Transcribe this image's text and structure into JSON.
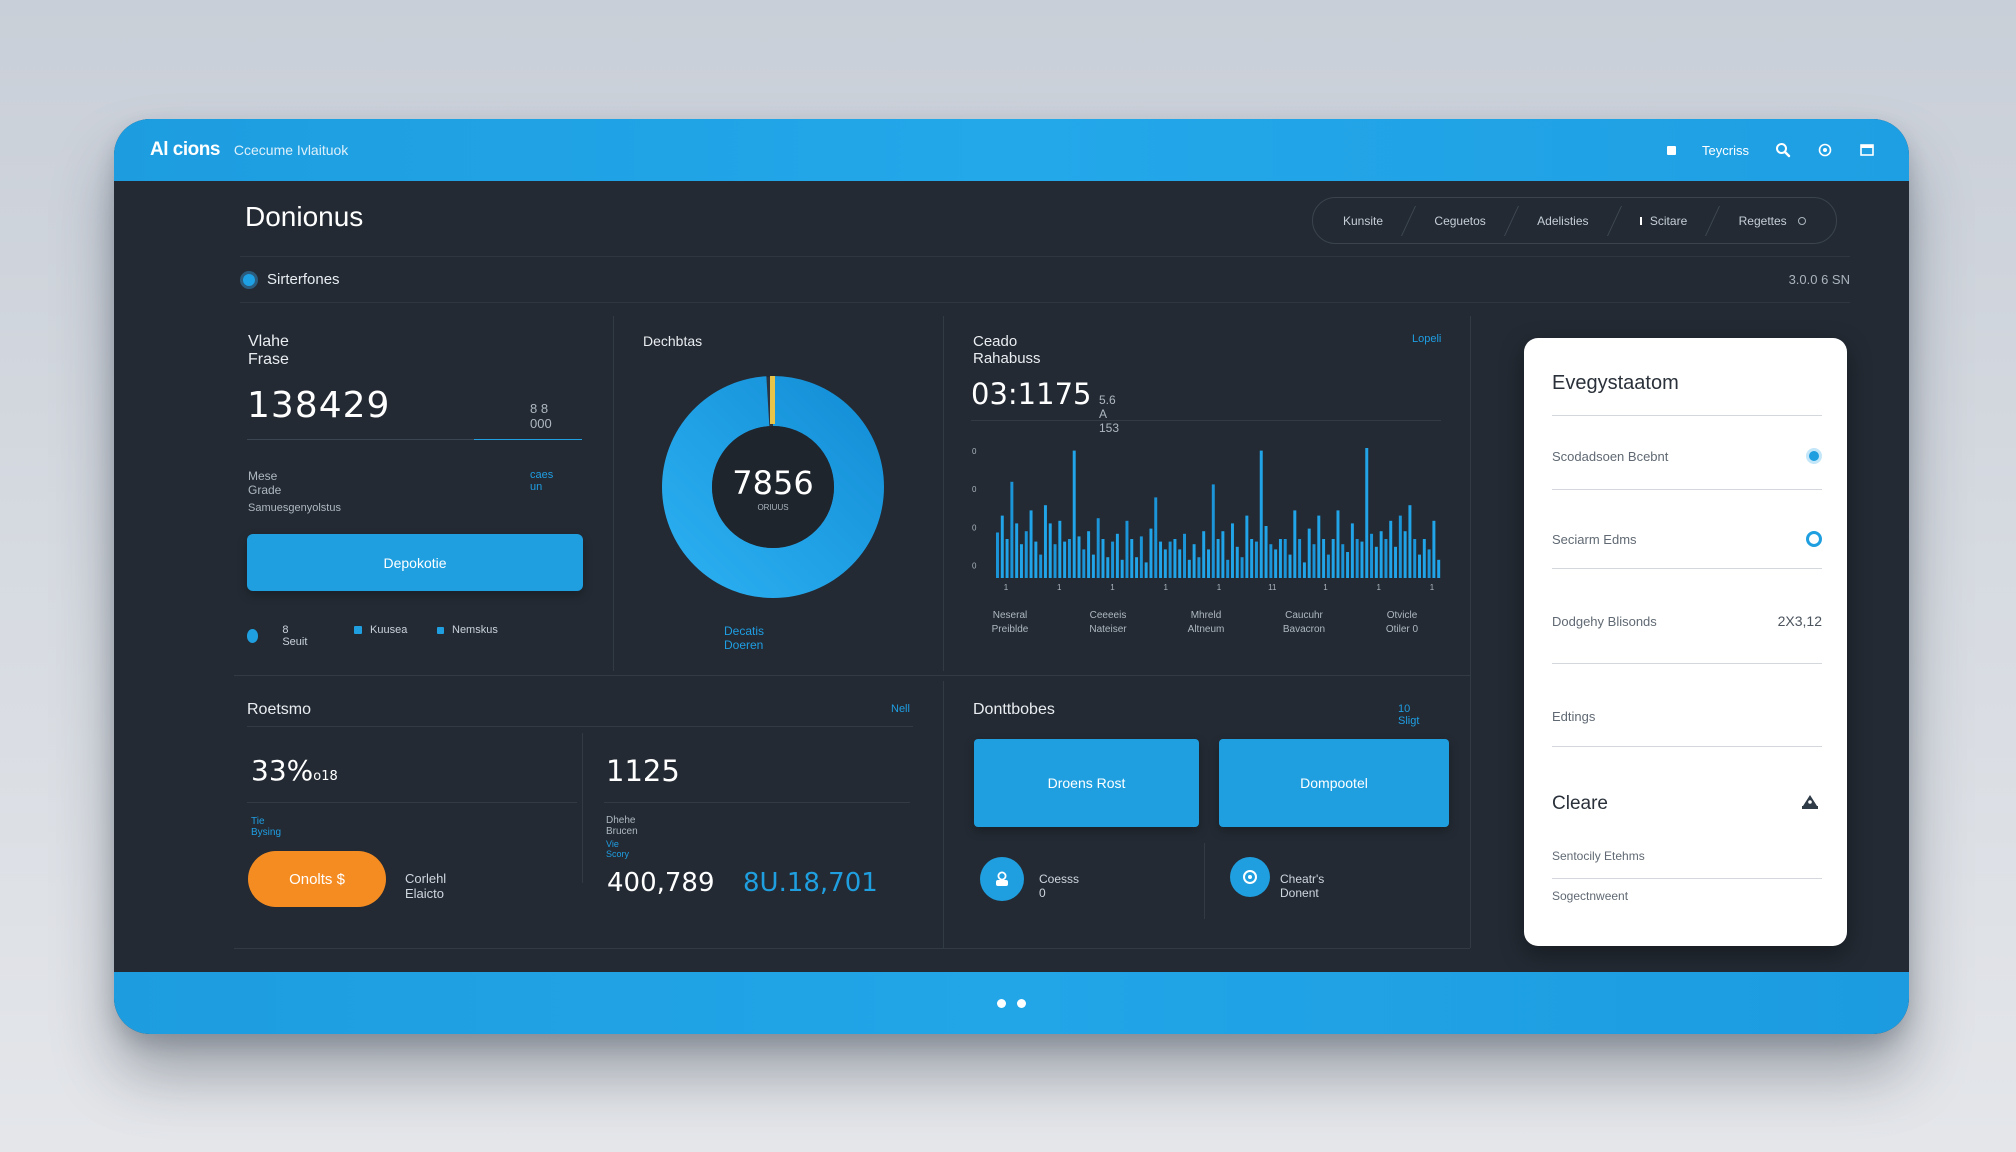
{
  "topbar": {
    "brand": "Al cions",
    "subtitle": "Ccecume Ivlaituok",
    "right_text": "Teycriss",
    "icons": [
      "square-icon",
      "search-icon",
      "settings-icon",
      "window-icon"
    ]
  },
  "page": {
    "title": "Donionus",
    "tabs": [
      "Kunsite",
      "Ceguetos",
      "Adelisties",
      "Scitare",
      "Regettes"
    ],
    "status_label": "Sirterfones",
    "status_time": "3.0.0 6 SN"
  },
  "panel1": {
    "label": "Vlahe Frase",
    "value": "138429",
    "side_value": "8 8 000",
    "row1_label": "Mese Grade",
    "row1_link": "caes un",
    "row2_label": "Samuesgenyolstus",
    "button": "Depokotie",
    "legend": [
      "8 Seuit",
      "Kuusea",
      "Nemskus"
    ]
  },
  "panel2": {
    "label": "Dechbtas",
    "donut_value": "7856",
    "donut_sub": "ORIUUS",
    "donut_fraction": 0.99,
    "footer_link": "Decatis Doeren"
  },
  "panel3": {
    "label": "Ceado Rahabuss",
    "link": "Lopeli",
    "value": "03:1175",
    "value_sub": "5.6 A 153"
  },
  "chart_data": {
    "type": "bar",
    "y_tick_labels": [
      "0",
      "0",
      "0",
      "0"
    ],
    "x_tick_labels": [
      "1",
      "1",
      "1",
      "1",
      "1",
      "11",
      "1",
      "1",
      "1"
    ],
    "category_labels": [
      [
        "Neseral",
        "Preiblde"
      ],
      [
        "Ceeeeis",
        "Nateiser"
      ],
      [
        "Mhreld",
        "Altneum"
      ],
      [
        "Caucuhr",
        "Bavacron"
      ],
      [
        "Otvicle",
        "Otiler 0"
      ]
    ],
    "values": [
      35,
      48,
      30,
      74,
      42,
      26,
      36,
      52,
      28,
      18,
      56,
      42,
      26,
      44,
      28,
      30,
      98,
      32,
      22,
      36,
      18,
      46,
      30,
      16,
      28,
      34,
      14,
      44,
      30,
      16,
      32,
      12,
      38,
      62,
      28,
      22,
      28,
      30,
      22,
      34,
      14,
      26,
      16,
      36,
      22,
      72,
      30,
      36,
      14,
      42,
      24,
      16,
      48,
      30,
      28,
      98,
      40,
      26,
      22,
      30,
      30,
      18,
      52,
      30,
      12,
      38,
      26,
      48,
      30,
      18,
      30,
      52,
      26,
      20,
      42,
      30,
      28,
      100,
      34,
      24,
      36,
      30,
      44,
      24,
      48,
      36,
      56,
      30,
      18,
      30,
      22,
      44,
      14
    ],
    "ylim": [
      0,
      100
    ]
  },
  "panel4": {
    "label": "Roetsmo",
    "link": "Nell",
    "percent": "33%",
    "percent_suffix": "o18",
    "percent_sub": "Tie Bysing",
    "count": "1125",
    "count_sub1": "Dhehe Brucen",
    "count_sub2": "Vie Scory",
    "orange_button": "Onolts $",
    "orange_caption": "Corlehl Elaicto",
    "value_white": "400,789",
    "value_blue": "8U.18,701"
  },
  "panel5": {
    "label": "Donttbobes",
    "link": "10 Sligt",
    "button1": "Droens Rost",
    "button2": "Dompootel",
    "icon1_caption": "Coesss 0",
    "icon2_caption": "Cheatr's Donent"
  },
  "side_card": {
    "title": "Evegystaatom",
    "row1": "Scodadsoen Bcebnt",
    "row2": "Seciarm Edms",
    "row3": "Dodgehy Blisonds",
    "row3_value": "2X3,12",
    "row4": "Edtings",
    "section_title": "Cleare",
    "row5": "Sentocily Etehms",
    "row6": "Sogectnweent"
  },
  "colors": {
    "accent": "#1f9fe0",
    "orange": "#f58c22",
    "panel_bg": "#232a33",
    "gold": "#e8c54a"
  }
}
